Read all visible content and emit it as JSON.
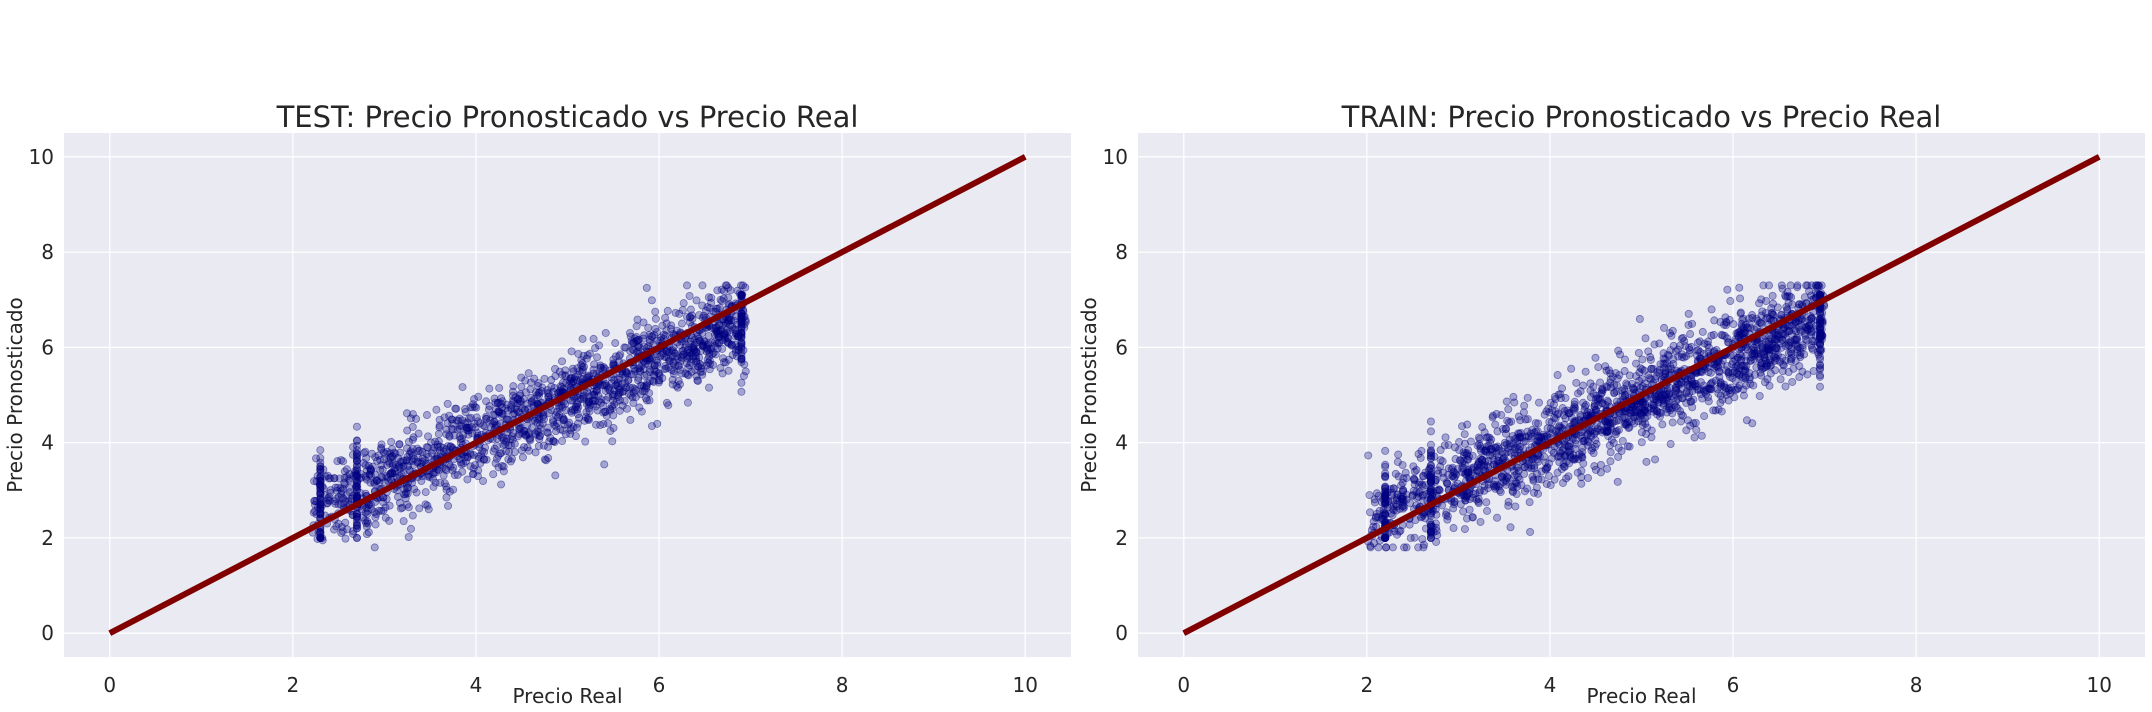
{
  "chart_data": [
    {
      "type": "scatter",
      "title": "TEST: Precio Pronosticado vs Precio Real",
      "xlabel": "Precio Real",
      "ylabel": "Precio Pronosticado",
      "xlim": [
        -0.5,
        10.5
      ],
      "ylim": [
        -0.5,
        10.5
      ],
      "xticks": [
        0,
        2,
        4,
        6,
        8,
        10
      ],
      "yticks": [
        0,
        2,
        4,
        6,
        8,
        10
      ],
      "grid": true,
      "point_color": "#000080",
      "point_alpha": 0.3,
      "scatter_summary": {
        "x_range": [
          1.9,
          6.95
        ],
        "trend_slope": 0.85,
        "trend_intercept": 0.65,
        "spread": 0.45,
        "point_count_drawn": 1600,
        "seed": 11
      },
      "reference_line": {
        "x": [
          0,
          10
        ],
        "y": [
          0,
          10
        ],
        "color": "#800000"
      }
    },
    {
      "type": "scatter",
      "title": "TRAIN: Precio Pronosticado vs Precio Real",
      "xlabel": "Precio Real",
      "ylabel": "Precio Pronosticado",
      "xlim": [
        -0.5,
        10.5
      ],
      "ylim": [
        -0.5,
        10.5
      ],
      "xticks": [
        0,
        2,
        4,
        6,
        8,
        10
      ],
      "yticks": [
        0,
        2,
        4,
        6,
        8,
        10
      ],
      "grid": true,
      "point_color": "#000080",
      "point_alpha": 0.3,
      "scatter_summary": {
        "x_range": [
          1.7,
          7.0
        ],
        "trend_slope": 0.86,
        "trend_intercept": 0.62,
        "spread": 0.48,
        "point_count_drawn": 1900,
        "seed": 29
      },
      "reference_line": {
        "x": [
          0,
          10
        ],
        "y": [
          0,
          10
        ],
        "color": "#800000"
      }
    }
  ]
}
